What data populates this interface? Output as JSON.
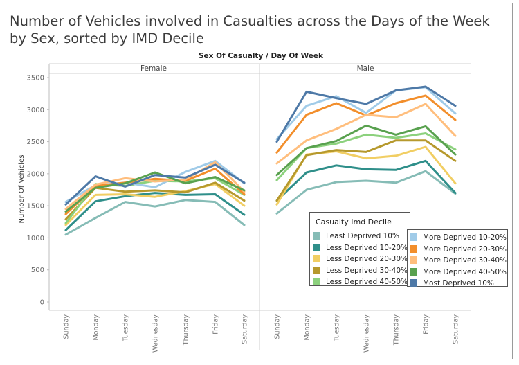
{
  "title": "Number of Vehicles involved in Casualties across the Days of the Week by Sex, sorted by IMD Decile",
  "chart_data": {
    "type": "line",
    "header_title": "Sex Of Casualty  /  Day Of Week",
    "ylabel": "Number Of Vehicles",
    "ylim": [
      0,
      3500
    ],
    "yticks": [
      0,
      500,
      1000,
      1500,
      2000,
      2500,
      3000,
      3500
    ],
    "categories": [
      "Sunday",
      "Monday",
      "Tuesday",
      "Wednesday",
      "Thursday",
      "Friday",
      "Saturday"
    ],
    "legend_title": "Casualty Imd Decile",
    "panels": [
      {
        "name": "Female",
        "series": [
          {
            "name": "Least Deprived 10%",
            "color": "#86bcb6",
            "values": [
              1050,
              1310,
              1560,
              1490,
              1590,
              1560,
              1200
            ]
          },
          {
            "name": "Less Deprived 10-20%",
            "color": "#2f8f8a",
            "values": [
              1120,
              1570,
              1650,
              1700,
              1670,
              1680,
              1360
            ]
          },
          {
            "name": "Less Deprived 20-30%",
            "color": "#f1ce63",
            "values": [
              1200,
              1670,
              1680,
              1640,
              1730,
              1840,
              1500
            ]
          },
          {
            "name": "Less Deprived 30-40%",
            "color": "#b6992d",
            "values": [
              1290,
              1780,
              1720,
              1740,
              1710,
              1860,
              1580
            ]
          },
          {
            "name": "Less Deprived 40-50%",
            "color": "#8cd17d",
            "values": [
              1230,
              1840,
              1810,
              1890,
              1880,
              1930,
              1670
            ]
          },
          {
            "name": "More Deprived 10-20%",
            "color": "#a0cbe8",
            "values": [
              1560,
              1820,
              1860,
              1790,
              2030,
              2200,
              1850
            ]
          },
          {
            "name": "More Deprived 20-30%",
            "color": "#f28e2b",
            "values": [
              1370,
              1810,
              1860,
              1920,
              1890,
              2080,
              1680
            ]
          },
          {
            "name": "More Deprived 30-40%",
            "color": "#ffbe7d",
            "values": [
              1450,
              1830,
              1930,
              1880,
              1910,
              2180,
              1720
            ]
          },
          {
            "name": "More Deprived 40-50%",
            "color": "#59a14f",
            "values": [
              1410,
              1780,
              1850,
              2020,
              1850,
              1950,
              1740
            ]
          },
          {
            "name": "Most Deprived 10%",
            "color": "#4e79a7",
            "values": [
              1520,
              1960,
              1800,
              1980,
              1940,
              2140,
              1860
            ]
          }
        ]
      },
      {
        "name": "Male",
        "series": [
          {
            "name": "Least Deprived 10%",
            "color": "#86bcb6",
            "values": [
              1380,
              1750,
              1870,
              1890,
              1860,
              2040,
              1690
            ]
          },
          {
            "name": "Less Deprived 10-20%",
            "color": "#2f8f8a",
            "values": [
              1580,
              2020,
              2130,
              2070,
              2060,
              2200,
              1700
            ]
          },
          {
            "name": "Less Deprived 20-30%",
            "color": "#f1ce63",
            "values": [
              1520,
              2300,
              2350,
              2240,
              2280,
              2420,
              1850
            ]
          },
          {
            "name": "Less Deprived 30-40%",
            "color": "#b6992d",
            "values": [
              1580,
              2290,
              2370,
              2340,
              2520,
              2520,
              2200
            ]
          },
          {
            "name": "Less Deprived 40-50%",
            "color": "#8cd17d",
            "values": [
              1900,
              2400,
              2470,
              2610,
              2560,
              2630,
              2380
            ]
          },
          {
            "name": "More Deprived 10-20%",
            "color": "#a0cbe8",
            "values": [
              2540,
              3060,
              3210,
              2950,
              3300,
              3350,
              2940
            ]
          },
          {
            "name": "More Deprived 20-30%",
            "color": "#f28e2b",
            "values": [
              2330,
              2920,
              3100,
              2910,
              3100,
              3220,
              2840
            ]
          },
          {
            "name": "More Deprived 30-40%",
            "color": "#ffbe7d",
            "values": [
              2160,
              2520,
              2700,
              2920,
              2880,
              3090,
              2590
            ]
          },
          {
            "name": "More Deprived 40-50%",
            "color": "#59a14f",
            "values": [
              1980,
              2400,
              2510,
              2750,
              2610,
              2740,
              2300
            ]
          },
          {
            "name": "Most Deprived 10%",
            "color": "#4e79a7",
            "values": [
              2500,
              3280,
              3180,
              3090,
              3300,
              3360,
              3060
            ]
          }
        ]
      }
    ],
    "grid": false
  }
}
